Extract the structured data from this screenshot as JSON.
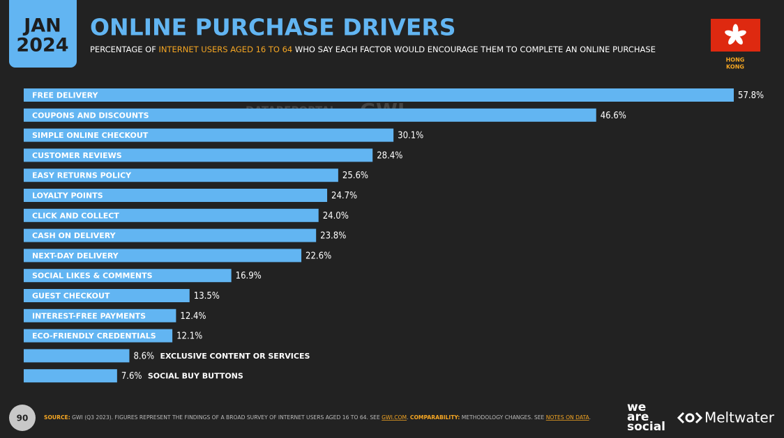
{
  "header": {
    "month": "JAN",
    "year": "2024",
    "region": [
      "HONG",
      "KONG"
    ]
  },
  "chart_data": {
    "type": "bar",
    "orientation": "horizontal",
    "title": "ONLINE PURCHASE DRIVERS",
    "subtitle": [
      "PERCENTAGE OF ",
      "INTERNET USERS AGED 16 TO 64",
      " WHO SAY EACH FACTOR WOULD ENCOURAGE THEM TO COMPLETE AN ONLINE PURCHASE"
    ],
    "categories": [
      "FREE DELIVERY",
      "COUPONS AND DISCOUNTS",
      "SIMPLE ONLINE CHECKOUT",
      "CUSTOMER REVIEWS",
      "EASY RETURNS POLICY",
      "LOYALTY POINTS",
      "CLICK AND COLLECT",
      "CASH ON DELIVERY",
      "NEXT-DAY DELIVERY",
      "SOCIAL LIKES & COMMENTS",
      "GUEST CHECKOUT",
      "INTEREST-FREE PAYMENTS",
      "ECO-FRIENDLY CREDENTIALS",
      "EXCLUSIVE CONTENT OR SERVICES",
      "SOCIAL BUY BUTTONS"
    ],
    "values": [
      57.8,
      46.6,
      30.1,
      28.4,
      25.6,
      24.7,
      24.0,
      23.8,
      22.6,
      16.9,
      13.5,
      12.4,
      12.1,
      8.6,
      7.6
    ],
    "value_labels": [
      "57.8%",
      "46.6%",
      "30.1%",
      "28.4%",
      "25.6%",
      "24.7%",
      "24.0%",
      "23.8%",
      "22.6%",
      "16.9%",
      "13.5%",
      "12.4%",
      "12.1%",
      "8.6%",
      "7.6%"
    ],
    "color": "#62b5f2"
  },
  "watermark": [
    "DATAREPORTAL",
    "GWI."
  ],
  "footer": {
    "page": 90,
    "source": [
      "SOURCE:",
      " GWI (Q3 2023). FIGURES REPRESENT THE FINDINGS OF A BROAD SURVEY OF INTERNET USERS AGED 16 TO 64. SEE ",
      "GWI.COM",
      ". ",
      "COMPARABILITY:",
      " METHODOLOGY CHANGES. SEE ",
      "NOTES ON DATA",
      "."
    ],
    "brands": [
      "we",
      "are",
      "social",
      "Meltwater"
    ]
  }
}
